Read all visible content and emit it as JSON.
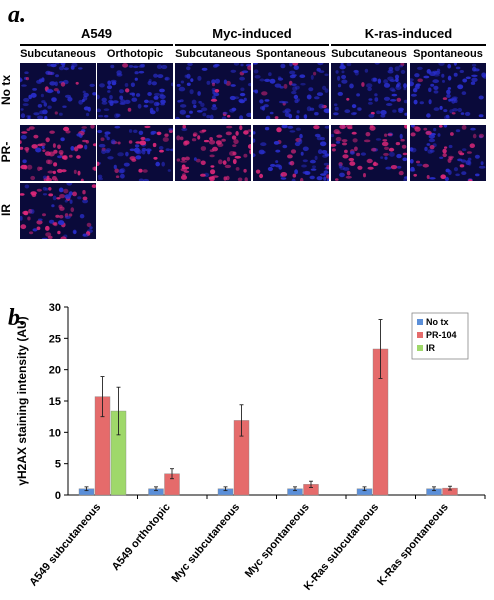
{
  "panel_a": {
    "label": "a.",
    "groups": [
      "A549",
      "Myc-induced",
      "K-ras-induced"
    ],
    "columns": [
      "Subcutaneous",
      "Orthotopic",
      "Subcutaneous",
      "Spontaneous",
      "Subcutaneous",
      "Spontaneous"
    ],
    "rows": [
      "No tx",
      "PR-",
      "IR"
    ],
    "tiles": [
      {
        "row": 0,
        "col": 0,
        "red_level": 0.12
      },
      {
        "row": 0,
        "col": 1,
        "red_level": 0.05
      },
      {
        "row": 0,
        "col": 2,
        "red_level": 0.15
      },
      {
        "row": 0,
        "col": 3,
        "red_level": 0.12
      },
      {
        "row": 0,
        "col": 4,
        "red_level": 0.1
      },
      {
        "row": 0,
        "col": 5,
        "red_level": 0.05
      },
      {
        "row": 1,
        "col": 0,
        "red_level": 0.8
      },
      {
        "row": 1,
        "col": 1,
        "red_level": 0.3
      },
      {
        "row": 1,
        "col": 2,
        "red_level": 0.95
      },
      {
        "row": 1,
        "col": 3,
        "red_level": 0.25
      },
      {
        "row": 1,
        "col": 4,
        "red_level": 0.7
      },
      {
        "row": 1,
        "col": 5,
        "red_level": 0.3
      },
      {
        "row": 2,
        "col": 0,
        "red_level": 0.55
      }
    ],
    "colors": {
      "nuclei": "#2a2fd0",
      "stain": "#e0287a",
      "background": "#0a0a3a"
    }
  },
  "panel_b": {
    "label": "b."
  },
  "chart_data": {
    "type": "bar",
    "ylabel": "γH2AX staining intensity (AU)",
    "xlabel": "",
    "ylim": [
      0,
      30
    ],
    "yticks": [
      0,
      5,
      10,
      15,
      20,
      25,
      30
    ],
    "grid": false,
    "legend_position": "top-right",
    "categories": [
      "A549 subcutaneous",
      "A549 orthotopic",
      "Myc subcutaneous",
      "Myc spontaneous",
      "K-Ras subcutaneous",
      "K-Ras spontaneous"
    ],
    "series": [
      {
        "name": "No tx",
        "color": "#5b8fd9",
        "values": [
          1.0,
          1.0,
          1.0,
          1.0,
          1.0,
          1.0
        ],
        "errors": [
          0.3,
          0.3,
          0.3,
          0.3,
          0.3,
          0.3
        ]
      },
      {
        "name": "PR-104",
        "color": "#e56b6b",
        "values": [
          15.7,
          3.4,
          11.9,
          1.7,
          23.3,
          1.1
        ],
        "errors": [
          3.2,
          0.8,
          2.5,
          0.5,
          4.7,
          0.3
        ]
      },
      {
        "name": "IR",
        "color": "#9fd86a",
        "values": [
          13.4,
          null,
          null,
          null,
          null,
          null
        ],
        "errors": [
          3.8,
          null,
          null,
          null,
          null,
          null
        ]
      }
    ]
  }
}
